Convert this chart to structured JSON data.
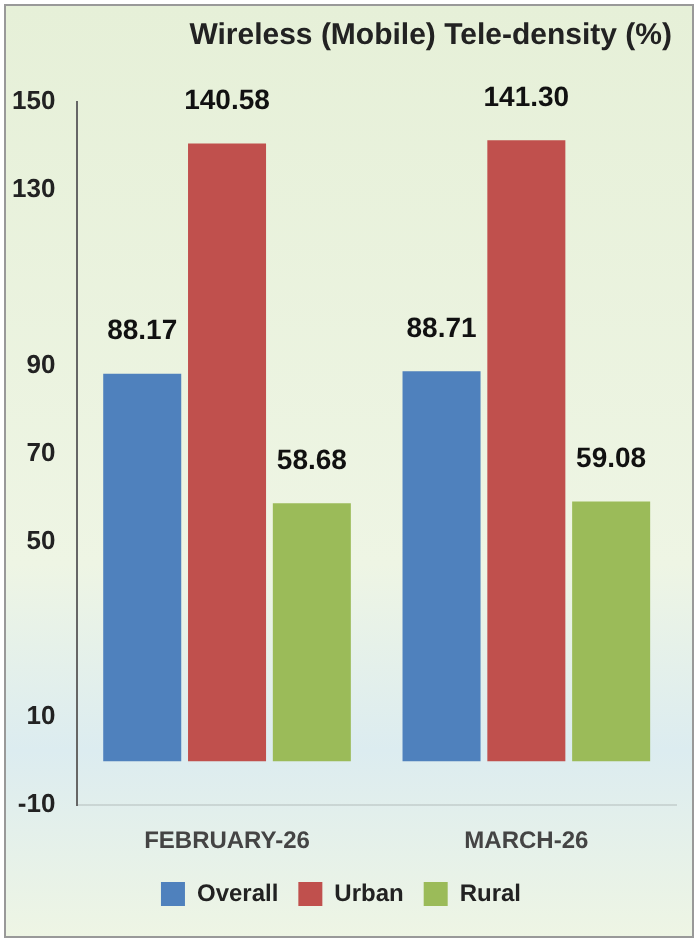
{
  "chart_data": {
    "type": "bar",
    "title": "Wireless (Mobile) Tele-density (%)",
    "categories": [
      "FEBRUARY-26",
      "MARCH-26"
    ],
    "series": [
      {
        "name": "Overall",
        "color": "#4f81bd",
        "values": [
          88.17,
          88.71
        ],
        "value_labels": [
          "88.17",
          "88.71"
        ]
      },
      {
        "name": "Urban",
        "color": "#c0504d",
        "values": [
          140.58,
          141.3
        ],
        "value_labels": [
          "140.58",
          "141.30"
        ]
      },
      {
        "name": "Rural",
        "color": "#9bbb59",
        "values": [
          58.68,
          59.08
        ],
        "value_labels": [
          "58.68",
          "59.08"
        ]
      }
    ],
    "ylim": [
      -10,
      150
    ],
    "yticks": [
      -10,
      10,
      50,
      70,
      90,
      130,
      150
    ],
    "grid": false,
    "legend": "bottom"
  }
}
